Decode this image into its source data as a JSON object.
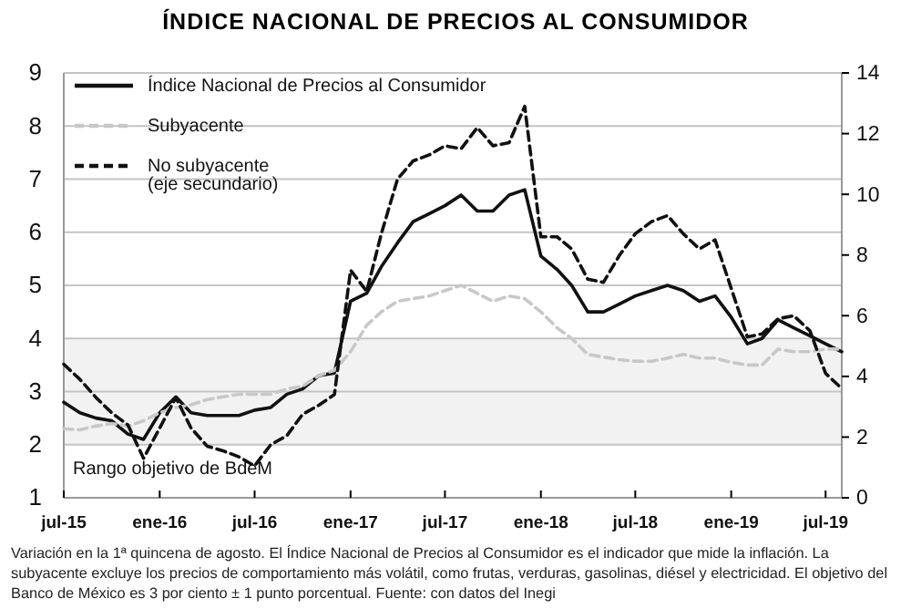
{
  "chart_data": {
    "type": "line",
    "title": "ÍNDICE NACIONAL DE PRECIOS AL CONSUMIDOR",
    "x": [
      "2015-07",
      "2015-08",
      "2015-09",
      "2015-10",
      "2015-11",
      "2015-12",
      "2016-01",
      "2016-02",
      "2016-03",
      "2016-04",
      "2016-05",
      "2016-06",
      "2016-07",
      "2016-08",
      "2016-09",
      "2016-10",
      "2016-11",
      "2016-12",
      "2017-01",
      "2017-02",
      "2017-03",
      "2017-04",
      "2017-05",
      "2017-06",
      "2017-07",
      "2017-08",
      "2017-09",
      "2017-10",
      "2017-11",
      "2017-12",
      "2018-01",
      "2018-02",
      "2018-03",
      "2018-04",
      "2018-05",
      "2018-06",
      "2018-07",
      "2018-08",
      "2018-09",
      "2018-10",
      "2018-11",
      "2018-12",
      "2019-01",
      "2019-02",
      "2019-03",
      "2019-04",
      "2019-05",
      "2019-06",
      "2019-07",
      "2019-08"
    ],
    "series": [
      {
        "name": "Índice Nacional de Precios al Consumidor",
        "color": "#111111",
        "line_style": "solid",
        "values": [
          2.8,
          2.6,
          2.5,
          2.45,
          2.2,
          2.1,
          2.6,
          2.9,
          2.6,
          2.55,
          2.55,
          2.55,
          2.65,
          2.7,
          2.95,
          3.05,
          3.3,
          3.35,
          4.7,
          4.85,
          5.35,
          5.8,
          6.2,
          6.35,
          6.5,
          6.7,
          6.4,
          6.4,
          6.7,
          6.8,
          5.55,
          5.3,
          5.0,
          4.5,
          4.5,
          4.65,
          4.8,
          4.9,
          5.0,
          4.9,
          4.7,
          4.8,
          4.4,
          3.9,
          4.0,
          4.35,
          4.2,
          4.05,
          3.9,
          3.75
        ]
      },
      {
        "name": "Subyacente",
        "color": "#c8c8c8",
        "line_style": "dashed",
        "values": [
          2.3,
          2.28,
          2.35,
          2.4,
          2.35,
          2.45,
          2.6,
          2.7,
          2.75,
          2.85,
          2.9,
          2.95,
          2.95,
          2.95,
          3.05,
          3.1,
          3.3,
          3.4,
          3.75,
          4.25,
          4.5,
          4.7,
          4.75,
          4.8,
          4.9,
          5.0,
          4.85,
          4.7,
          4.8,
          4.75,
          4.5,
          4.2,
          4.0,
          3.7,
          3.65,
          3.6,
          3.57,
          3.57,
          3.63,
          3.7,
          3.63,
          3.63,
          3.55,
          3.5,
          3.5,
          3.8,
          3.75,
          3.75,
          3.8,
          3.8
        ]
      },
      {
        "name": "No subyacente\n(eje secundario)",
        "color": "#111111",
        "line_style": "dashed",
        "axis": "y2",
        "values": [
          4.4,
          3.9,
          3.3,
          2.8,
          2.4,
          1.3,
          2.3,
          3.3,
          2.3,
          1.7,
          1.55,
          1.35,
          1.05,
          1.75,
          2.05,
          2.75,
          3.05,
          3.4,
          7.5,
          6.8,
          8.7,
          10.5,
          11.1,
          11.3,
          11.6,
          11.5,
          12.2,
          11.6,
          11.7,
          12.9,
          8.6,
          8.6,
          8.2,
          7.2,
          7.1,
          8.0,
          8.7,
          9.1,
          9.3,
          8.7,
          8.2,
          8.5,
          6.9,
          5.3,
          5.4,
          5.9,
          6.0,
          5.5,
          4.1,
          3.6
        ]
      }
    ],
    "xlim": [
      "2015-07",
      "2019-08"
    ],
    "xticks": [
      {
        "value": "2015-07",
        "label": "jul-15"
      },
      {
        "value": "2016-01",
        "label": "ene-16"
      },
      {
        "value": "2016-07",
        "label": "jul-16"
      },
      {
        "value": "2017-01",
        "label": "ene-17"
      },
      {
        "value": "2017-07",
        "label": "jul-17"
      },
      {
        "value": "2018-01",
        "label": "ene-18"
      },
      {
        "value": "2018-07",
        "label": "jul-18"
      },
      {
        "value": "2019-01",
        "label": "ene-19"
      },
      {
        "value": "2019-07",
        "label": "jul-19"
      }
    ],
    "ylim": [
      1,
      9
    ],
    "yticks": [
      1,
      2,
      3,
      4,
      5,
      6,
      7,
      8,
      9
    ],
    "y2lim": [
      0,
      14
    ],
    "y2ticks": [
      0,
      2,
      4,
      6,
      8,
      10,
      12,
      14
    ],
    "bands": [
      {
        "axis": "y",
        "from": 2,
        "to": 4,
        "label": "Rango objetivo de BdeM",
        "color": "#f2f2f2"
      }
    ],
    "grid": "y",
    "legend": "top left",
    "annotations": [
      "Variación en la 1ª quincena de agosto. El Índice Nacional de Precios al Consumidor es el indicador que mide la inflación. La subyacente excluye los precios de comportamiento más volátil, como frutas, verduras, gasolinas, diésel y electricidad. El objetivo del Banco de México es 3 por ciento ± 1 punto porcentual.",
      "Fuente: con datos del Inegi"
    ]
  }
}
